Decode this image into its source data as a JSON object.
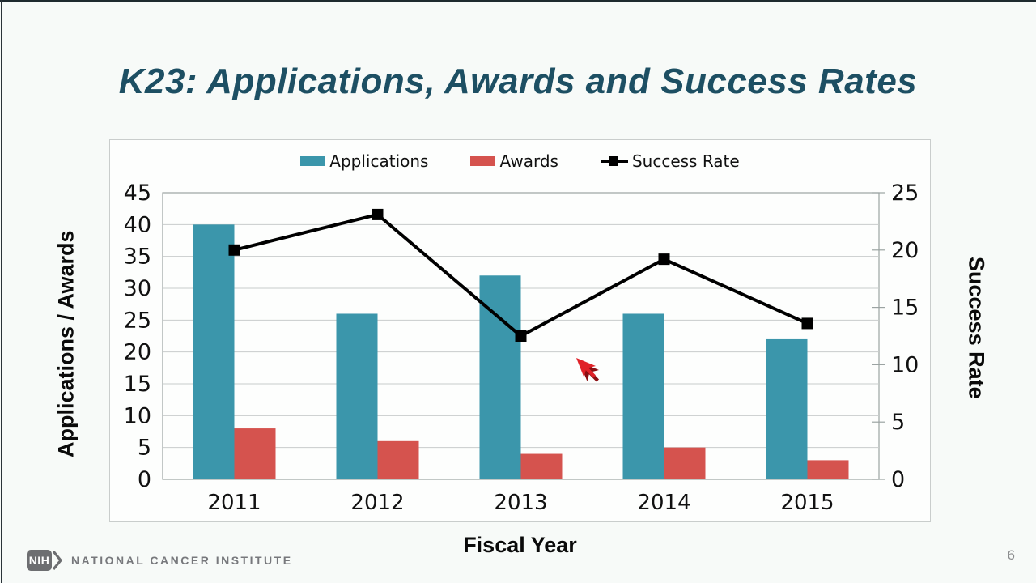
{
  "slide": {
    "title": "K23: Applications, Awards and Success Rates",
    "page_number": "6"
  },
  "footer": {
    "nih_acronym": "NIH",
    "institute_name": "NATIONAL CANCER INSTITUTE"
  },
  "chart_data": {
    "type": "bar",
    "subtype": "grouped-bars-with-line-overlay",
    "categories": [
      "2011",
      "2012",
      "2013",
      "2014",
      "2015"
    ],
    "series": [
      {
        "name": "Applications",
        "type": "bar",
        "axis": "left",
        "color": "#3b96ab",
        "values": [
          40,
          26,
          32,
          26,
          22
        ]
      },
      {
        "name": "Awards",
        "type": "bar",
        "axis": "left",
        "color": "#d5534e",
        "values": [
          8,
          6,
          4,
          5,
          3
        ]
      },
      {
        "name": "Success Rate",
        "type": "line",
        "axis": "right",
        "color": "#000000",
        "marker": "square",
        "values": [
          20.0,
          23.1,
          12.5,
          19.2,
          13.6
        ]
      }
    ],
    "title": "",
    "xlabel": "Fiscal Year",
    "ylabel_left": "Applications / Awards",
    "ylabel_right": "Success Rate",
    "ylim_left": [
      0,
      45
    ],
    "ylim_right": [
      0,
      25
    ],
    "yticks_left": [
      0,
      5,
      10,
      15,
      20,
      25,
      30,
      35,
      40,
      45
    ],
    "yticks_right": [
      0,
      5,
      10,
      15,
      20,
      25
    ],
    "grid": true,
    "legend_position": "top-center"
  },
  "cursor": {
    "shape": "red-arrow-pointer",
    "fill_color": "#e02128",
    "shadow_color": "#8b0e12"
  },
  "colors": {
    "slide_background": "#f7faf8",
    "title_text": "#1d4f63",
    "chart_card_background": "#fdfefd",
    "chart_card_border": "#c9cdcc",
    "gridline": "#c8cccb",
    "plot_border": "#9ba3a2",
    "axis_text": "#111111",
    "footer_gray": "#77787c"
  }
}
